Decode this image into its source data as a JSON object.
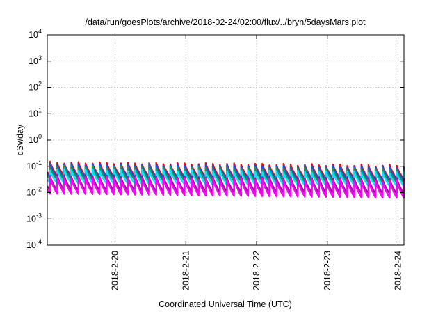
{
  "chart_data": {
    "type": "line",
    "title": "/data/run/goesPlots/archive/2018-02-24/02:00/flux/../bryn/5daysMars.plot",
    "xlabel": "Coordinated Universal Time (UTC)",
    "ylabel": "cSv/day",
    "y_scale": "log",
    "ylim": [
      0.0001,
      10000
    ],
    "xlim": [
      "2018-02-19 01:00",
      "2018-02-24 02:00"
    ],
    "grid": true,
    "yticks": [
      {
        "base": "10",
        "exp": "-4"
      },
      {
        "base": "10",
        "exp": "-3"
      },
      {
        "base": "10",
        "exp": "-2"
      },
      {
        "base": "10",
        "exp": "-1"
      },
      {
        "base": "10",
        "exp": "0"
      },
      {
        "base": "10",
        "exp": "1"
      },
      {
        "base": "10",
        "exp": "2"
      },
      {
        "base": "10",
        "exp": "3"
      },
      {
        "base": "10",
        "exp": "4"
      }
    ],
    "xticks": [
      "2018-2-20",
      "2018-2-21",
      "2018-2-22",
      "2018-2-23",
      "2018-2-24"
    ],
    "xtick_dates": [
      "2018-02-20 00:00",
      "2018-02-21 00:00",
      "2018-02-22 00:00",
      "2018-02-23 00:00",
      "2018-02-24 00:00"
    ],
    "sawtooth_period_hours": 2.4,
    "series": [
      {
        "color": "#ff0000",
        "peak": [
          0.14,
          0.105
        ],
        "trough": [
          0.042,
          0.032
        ]
      },
      {
        "color": "#0055ff",
        "peak": [
          0.12,
          0.09
        ],
        "trough": [
          0.036,
          0.028
        ]
      },
      {
        "color": "#2e8b57",
        "peak": [
          0.1,
          0.075
        ],
        "trough": [
          0.03,
          0.023
        ]
      },
      {
        "color": "#00e5ff",
        "peak": [
          0.075,
          0.058
        ],
        "trough": [
          0.022,
          0.017
        ]
      },
      {
        "color": "#8b1a8b",
        "peak": [
          0.045,
          0.034
        ],
        "trough": [
          0.012,
          0.0088
        ]
      },
      {
        "color": "#ff00ff",
        "peak": [
          0.038,
          0.028
        ],
        "trough": [
          0.009,
          0.0062
        ]
      }
    ]
  }
}
